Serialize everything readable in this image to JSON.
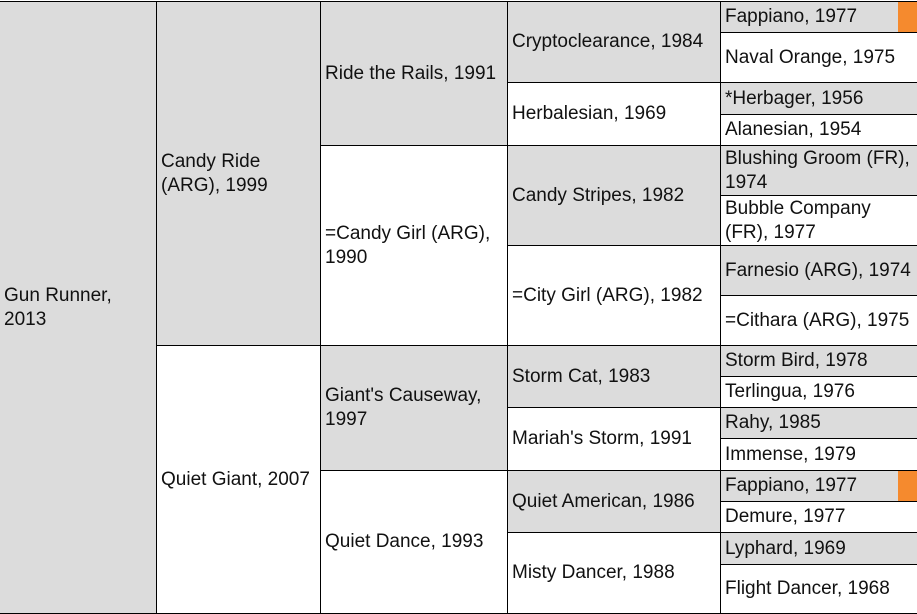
{
  "colors": {
    "shaded": "#dcdcdc",
    "plain": "#ffffff",
    "flag": "#f58a2e",
    "border": "#000000"
  },
  "horse": "Gun Runner, 2013",
  "sire": "Candy Ride (ARG), 1999",
  "dam": "Quiet Giant, 2007",
  "gen3": [
    "Ride the Rails, 1991",
    "=Candy Girl (ARG), 1990",
    "Giant's Causeway, 1997",
    "Quiet Dance, 1993"
  ],
  "gen4": [
    "Cryptoclearance, 1984",
    "Herbalesian, 1969",
    "Candy Stripes, 1982",
    "=City Girl (ARG), 1982",
    "Storm Cat, 1983",
    "Mariah's Storm, 1991",
    "Quiet American, 1986",
    "Misty Dancer, 1988"
  ],
  "gen5": [
    "Fappiano, 1977",
    "Naval Orange, 1975",
    "*Herbager, 1956",
    "Alanesian, 1954",
    "Blushing Groom (FR), 1974",
    "Bubble Company (FR), 1977",
    "Farnesio (ARG), 1974",
    "=Cithara (ARG), 1975",
    "Storm Bird, 1978",
    "Terlingua, 1976",
    "Rahy, 1985",
    "Immense, 1979",
    "Fappiano, 1977",
    "Demure, 1977",
    "Lyphard, 1969",
    "Flight Dancer, 1968"
  ]
}
